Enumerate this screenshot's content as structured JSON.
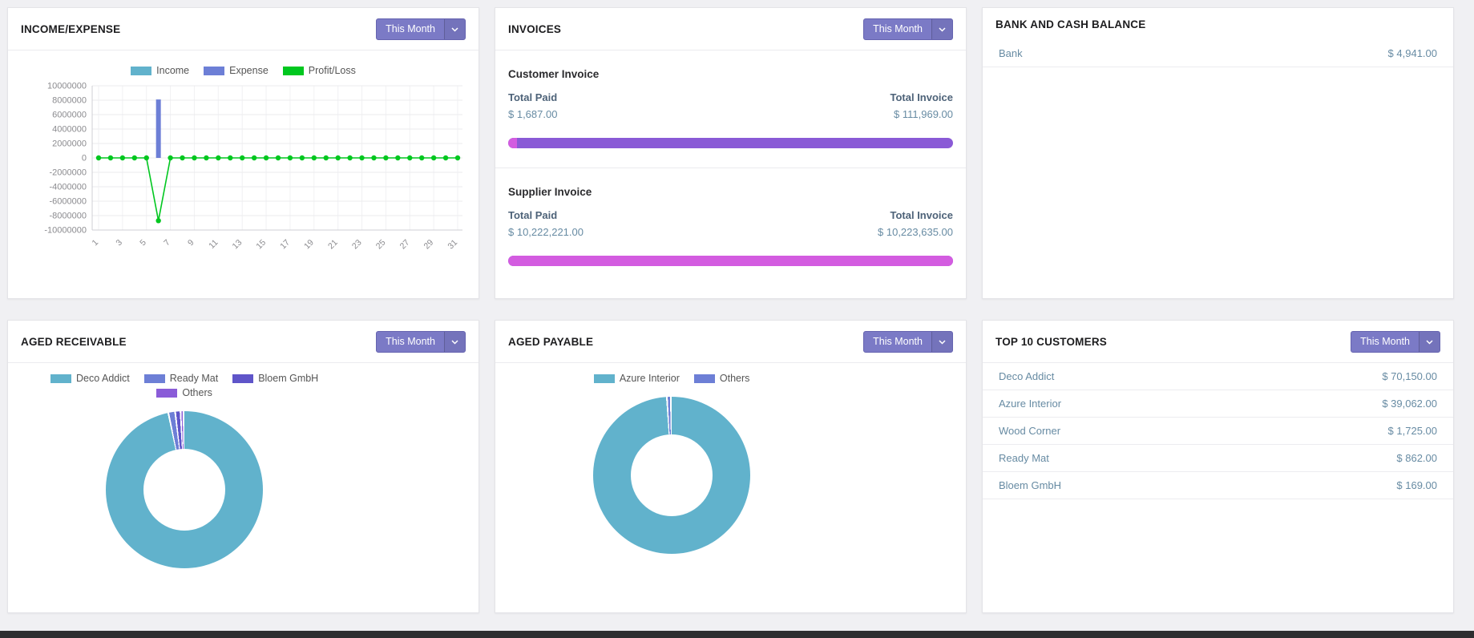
{
  "colors": {
    "accent_purple": "#7b7ac6",
    "link_blue": "#678ba3",
    "label_dark": "#4d6278",
    "bar_paid_magenta": "#d35ce0",
    "bar_remaining_purple": "#8a5ad6",
    "teal": "#61b2cc",
    "periwinkle": "#6d7fd6",
    "green": "#00c71f"
  },
  "income_expense": {
    "title": "INCOME/EXPENSE",
    "filter_label": "This Month",
    "chart_data": {
      "type": "bar+line",
      "x": [
        1,
        2,
        3,
        4,
        5,
        6,
        7,
        8,
        9,
        10,
        11,
        12,
        13,
        14,
        15,
        16,
        17,
        18,
        19,
        20,
        21,
        22,
        23,
        24,
        25,
        26,
        27,
        28,
        29,
        30,
        31
      ],
      "ylim": [
        -10000000,
        10000000
      ],
      "ytick_step": 2000000,
      "series": [
        {
          "name": "Income",
          "type": "bar",
          "color": "#61b2cc",
          "values": [
            0,
            0,
            0,
            0,
            0,
            0,
            0,
            0,
            0,
            0,
            0,
            0,
            0,
            0,
            0,
            0,
            0,
            0,
            0,
            0,
            0,
            0,
            0,
            0,
            0,
            0,
            0,
            0,
            0,
            0,
            0
          ]
        },
        {
          "name": "Expense",
          "type": "bar",
          "color": "#6d7fd6",
          "values": [
            0,
            0,
            0,
            0,
            0,
            8100000,
            0,
            0,
            0,
            0,
            0,
            0,
            0,
            0,
            0,
            0,
            0,
            0,
            0,
            0,
            0,
            0,
            0,
            0,
            0,
            0,
            0,
            0,
            0,
            0,
            0
          ]
        },
        {
          "name": "Profit/Loss",
          "type": "line",
          "color": "#00c71f",
          "values": [
            0,
            0,
            0,
            0,
            0,
            -8700000,
            0,
            0,
            0,
            0,
            0,
            0,
            0,
            0,
            0,
            0,
            0,
            0,
            0,
            0,
            0,
            0,
            0,
            0,
            0,
            0,
            0,
            0,
            0,
            0,
            0
          ]
        }
      ]
    }
  },
  "invoices": {
    "title": "INVOICES",
    "filter_label": "This Month",
    "customer": {
      "heading": "Customer Invoice",
      "total_paid_label": "Total Paid",
      "total_invoice_label": "Total Invoice",
      "total_paid": "$ 1,687.00",
      "total_invoice": "$ 111,969.00",
      "paid_pct": 2
    },
    "supplier": {
      "heading": "Supplier Invoice",
      "total_paid_label": "Total Paid",
      "total_invoice_label": "Total Invoice",
      "total_paid": "$ 10,222,221.00",
      "total_invoice": "$ 10,223,635.00",
      "paid_pct": 100
    }
  },
  "bank": {
    "title": "BANK AND CASH BALANCE",
    "rows": [
      {
        "label": "Bank",
        "amount": "$ 4,941.00"
      }
    ]
  },
  "aged_receivable": {
    "title": "AGED RECEIVABLE",
    "filter_label": "This Month",
    "chart_data": {
      "type": "pie",
      "donut": true,
      "slices": [
        {
          "label": "Deco Addict",
          "value": 96.9,
          "color": "#61b2cc"
        },
        {
          "label": "Ready Mat",
          "value": 1.4,
          "color": "#6d7fd6"
        },
        {
          "label": "Bloem GmbH",
          "value": 1.1,
          "color": "#5f55c9"
        },
        {
          "label": "Others",
          "value": 0.6,
          "color": "#8a5cd8"
        }
      ]
    }
  },
  "aged_payable": {
    "title": "AGED PAYABLE",
    "filter_label": "This Month",
    "chart_data": {
      "type": "pie",
      "donut": true,
      "slices": [
        {
          "label": "Azure Interior",
          "value": 99.2,
          "color": "#61b2cc"
        },
        {
          "label": "Others",
          "value": 0.8,
          "color": "#6d7fd6"
        }
      ]
    }
  },
  "top_customers": {
    "title": "TOP 10 CUSTOMERS",
    "filter_label": "This Month",
    "rows": [
      {
        "name": "Deco Addict",
        "amount": "$ 70,150.00"
      },
      {
        "name": "Azure Interior",
        "amount": "$ 39,062.00"
      },
      {
        "name": "Wood Corner",
        "amount": "$ 1,725.00"
      },
      {
        "name": "Ready Mat",
        "amount": "$ 862.00"
      },
      {
        "name": "Bloem GmbH",
        "amount": "$ 169.00"
      }
    ]
  }
}
